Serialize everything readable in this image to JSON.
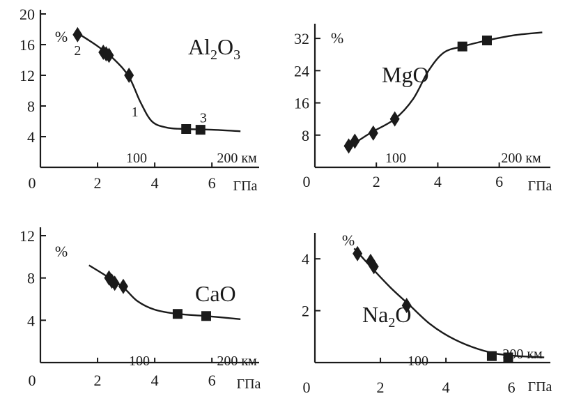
{
  "chart_data": [
    {
      "type": "line",
      "title": "Al2O3",
      "ylabel": "%",
      "xlabel": "ГПа",
      "ylim": [
        0,
        20
      ],
      "xlim": [
        0,
        7.8
      ],
      "yticks": [
        "4",
        "8",
        "12",
        "16",
        "20"
      ],
      "xticks": [
        "0",
        "2",
        "4",
        "6"
      ],
      "x_tick_labels_shown": [
        "0",
        "2",
        "4",
        "6"
      ],
      "depth_labels": [
        "100",
        "200 км"
      ],
      "annotations": [
        "1",
        "2",
        "3"
      ],
      "curve": {
        "x": [
          1.3,
          2.0,
          2.6,
          3.1,
          3.5,
          3.9,
          4.4,
          5.0,
          6.0,
          7.0
        ],
        "y": [
          17.5,
          15.8,
          14.0,
          11.8,
          8.5,
          6.0,
          5.2,
          5.0,
          4.9,
          4.7
        ]
      },
      "diamonds": {
        "x": [
          1.3,
          2.2,
          2.3,
          2.4,
          3.1
        ],
        "y": [
          17.3,
          15.0,
          14.8,
          14.6,
          12.0
        ]
      },
      "squares": {
        "x": [
          5.1,
          5.6
        ],
        "y": [
          5.0,
          4.9
        ]
      }
    },
    {
      "type": "line",
      "title": "MgO",
      "ylabel": "%",
      "xlabel": "ГПа",
      "ylim": [
        0,
        36
      ],
      "xlim": [
        0,
        7.8
      ],
      "yticks": [
        "8",
        "16",
        "24",
        "32"
      ],
      "xticks": [
        "0",
        "2",
        "4",
        "6"
      ],
      "depth_labels": [
        "100",
        "200 км"
      ],
      "curve": {
        "x": [
          1.1,
          1.8,
          2.6,
          3.2,
          3.7,
          4.2,
          4.8,
          5.6,
          6.5,
          7.4
        ],
        "y": [
          5.0,
          8.5,
          12.0,
          17.0,
          24.0,
          28.5,
          30.0,
          31.5,
          32.8,
          33.5
        ]
      },
      "diamonds": {
        "x": [
          1.1,
          1.3,
          1.9,
          2.6
        ],
        "y": [
          5.3,
          6.5,
          8.5,
          12.0
        ]
      },
      "squares": {
        "x": [
          4.8,
          5.6
        ],
        "y": [
          30.0,
          31.5
        ]
      }
    },
    {
      "type": "line",
      "title": "CaO",
      "ylabel": "%",
      "xlabel": "ГПа",
      "ylim": [
        0,
        12
      ],
      "xlim": [
        0,
        7.8
      ],
      "yticks": [
        "4",
        "8",
        "12"
      ],
      "xticks": [
        "0",
        "2",
        "4",
        "6"
      ],
      "depth_labels": [
        "100",
        "200 км"
      ],
      "curve": {
        "x": [
          1.7,
          2.3,
          2.9,
          3.4,
          4.0,
          4.8,
          5.8,
          7.0
        ],
        "y": [
          9.2,
          8.2,
          7.1,
          5.8,
          5.0,
          4.6,
          4.4,
          4.1
        ]
      },
      "diamonds": {
        "x": [
          2.4,
          2.5,
          2.6,
          2.9
        ],
        "y": [
          8.0,
          7.7,
          7.5,
          7.2
        ]
      },
      "squares": {
        "x": [
          4.8,
          5.8
        ],
        "y": [
          4.6,
          4.4
        ]
      }
    },
    {
      "type": "line",
      "title": "Na2O",
      "ylabel": "%",
      "xlabel": "ГПа",
      "ylim": [
        0,
        5
      ],
      "xlim": [
        0,
        7.4
      ],
      "yticks": [
        "2",
        "4"
      ],
      "xticks": [
        "0",
        "2",
        "4",
        "6"
      ],
      "depth_labels": [
        "100",
        "200 км"
      ],
      "curve": {
        "x": [
          1.2,
          1.7,
          2.3,
          2.9,
          3.5,
          4.1,
          4.8,
          5.5,
          6.2,
          7.0
        ],
        "y": [
          4.4,
          3.7,
          2.9,
          2.2,
          1.5,
          1.0,
          0.6,
          0.35,
          0.25,
          0.2
        ]
      },
      "diamonds": {
        "x": [
          1.3,
          1.7,
          1.8,
          2.8
        ],
        "y": [
          4.2,
          3.9,
          3.7,
          2.2
        ]
      },
      "squares": {
        "x": [
          5.4,
          5.9
        ],
        "y": [
          0.25,
          0.2
        ]
      }
    }
  ]
}
